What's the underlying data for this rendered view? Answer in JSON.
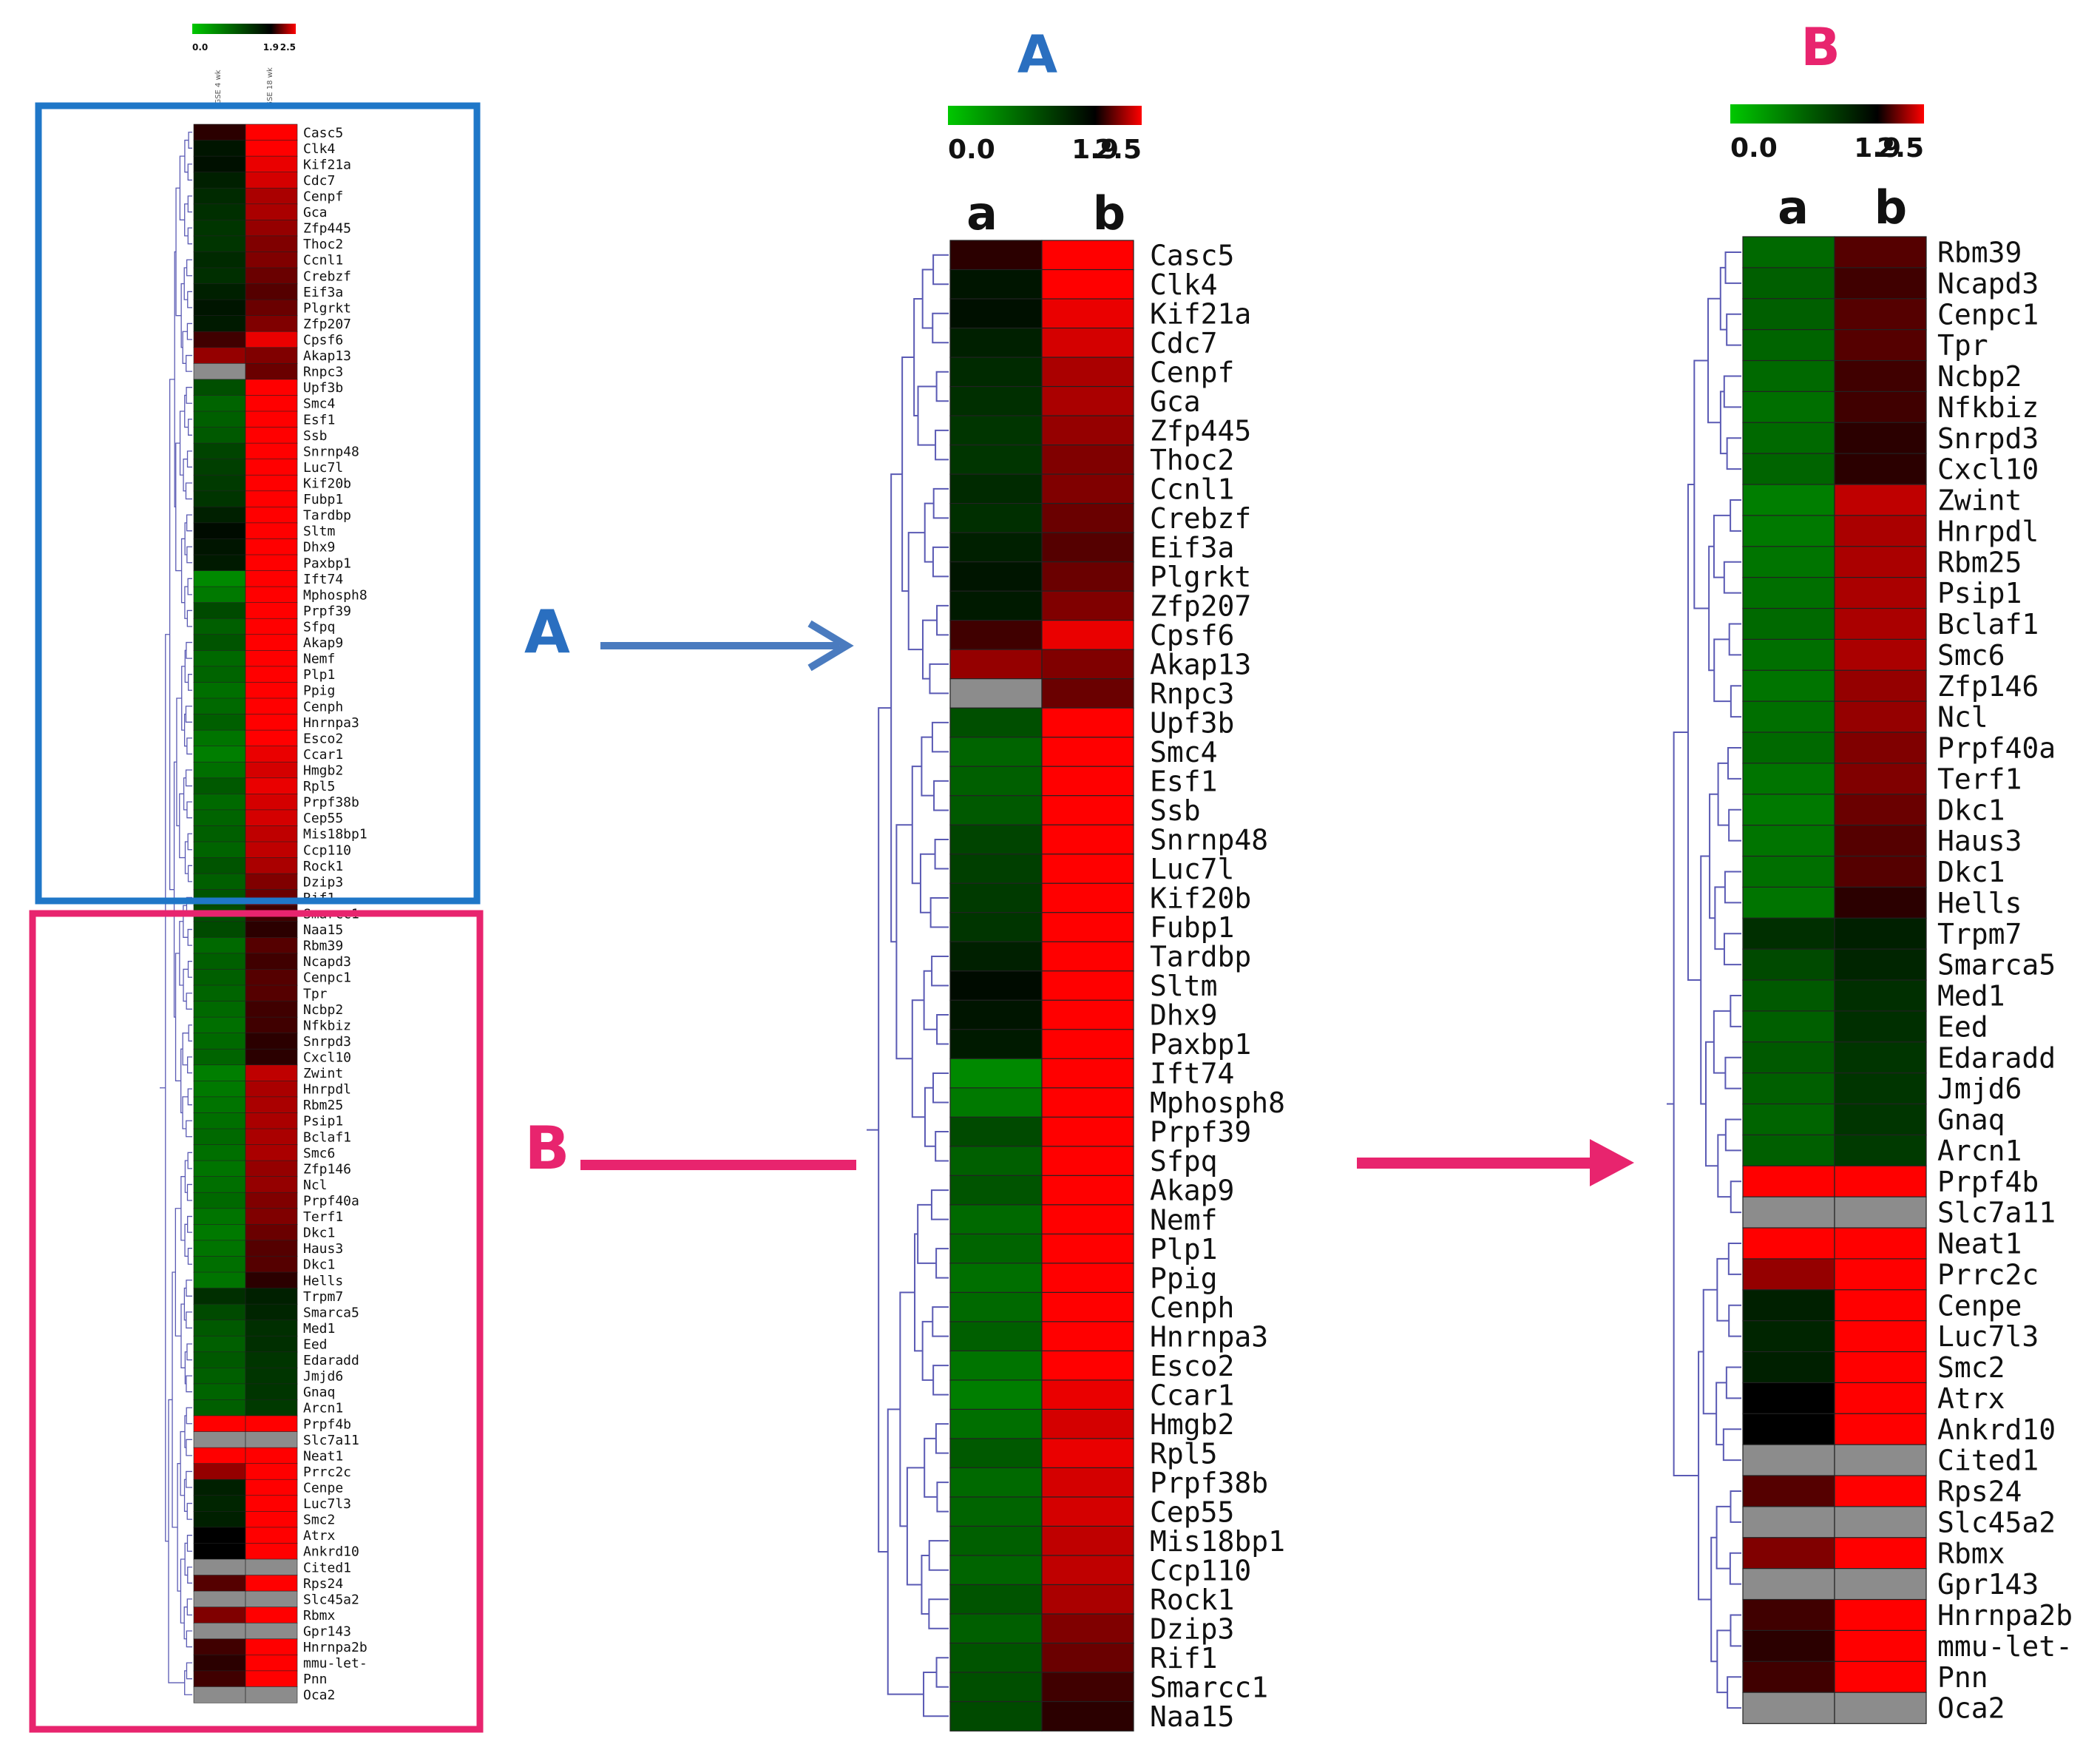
{
  "panel_labels": {
    "a": "A",
    "b": "B"
  },
  "arrow_labels": {
    "a": "A",
    "b": "B"
  },
  "scale": {
    "tick_labels": [
      "0.0",
      "1.9",
      "2.5"
    ],
    "min": 0.0,
    "mid": 1.9,
    "max": 2.5
  },
  "overview": {
    "column_labels": [
      "GSE 4 wk",
      "GSE 18 wk"
    ]
  },
  "column_labels": {
    "a": "a",
    "b": "b"
  },
  "colors": {
    "low": "#00c800",
    "mid": "#000000",
    "high": "#ff0000",
    "missing": "#8c8c8c",
    "dendrogram": "#5a5ab4",
    "box_a": "#1f77c8",
    "box_b": "#e8246e",
    "arrow_a": "#4a7bbf",
    "arrow_b": "#e8246e"
  },
  "chart_data": [
    {
      "type": "heatmap",
      "title": "A",
      "columns": [
        "a",
        "b"
      ],
      "scale": [
        0.0,
        1.9,
        2.5
      ],
      "genes": [
        "Casc5",
        "Clk4",
        "Kif21a",
        "Cdc7",
        "Cenpf",
        "Gca",
        "Zfp445",
        "Thoc2",
        "Ccnl1",
        "Crebzf",
        "Eif3a",
        "Plgrkt",
        "Zfp207",
        "Cpsf6",
        "Akap13",
        "Rnpc3",
        "Upf3b",
        "Smc4",
        "Esf1",
        "Ssb",
        "Snrnp48",
        "Luc7l",
        "Kif20b",
        "Fubp1",
        "Tardbp",
        "Sltm",
        "Dhx9",
        "Paxbp1",
        "Ift74",
        "Mphosph8",
        "Prpf39",
        "Sfpq",
        "Akap9",
        "Nemf",
        "Plp1",
        "Ppig",
        "Cenph",
        "Hnrnpa3",
        "Esco2",
        "Ccar1",
        "Hmgb2",
        "Rpl5",
        "Prpf38b",
        "Cep55",
        "Mis18bp1",
        "Ccp110",
        "Rock1",
        "Dzip3",
        "Rif1",
        "Smarcc1",
        "Naa15"
      ],
      "values_a": [
        2.0,
        1.7,
        1.75,
        1.6,
        1.5,
        1.45,
        1.4,
        1.4,
        1.5,
        1.45,
        1.6,
        1.7,
        1.65,
        2.05,
        2.25,
        null,
        1.15,
        0.95,
        1.0,
        1.05,
        1.25,
        1.3,
        1.35,
        1.4,
        1.6,
        1.8,
        1.7,
        1.65,
        0.6,
        0.75,
        1.2,
        1.0,
        1.1,
        0.9,
        0.95,
        0.85,
        0.9,
        1.0,
        0.8,
        0.7,
        0.85,
        1.05,
        0.9,
        0.95,
        1.0,
        0.95,
        1.1,
        1.0,
        1.1,
        1.15,
        1.2
      ],
      "values_b": [
        2.5,
        2.5,
        2.45,
        2.4,
        2.3,
        2.3,
        2.25,
        2.2,
        2.2,
        2.15,
        2.1,
        2.15,
        2.2,
        2.45,
        2.2,
        2.15,
        2.5,
        2.5,
        2.5,
        2.5,
        2.5,
        2.5,
        2.5,
        2.5,
        2.5,
        2.5,
        2.5,
        2.5,
        2.5,
        2.5,
        2.5,
        2.5,
        2.5,
        2.5,
        2.5,
        2.5,
        2.5,
        2.5,
        2.5,
        2.45,
        2.4,
        2.45,
        2.4,
        2.4,
        2.35,
        2.35,
        2.3,
        2.2,
        2.15,
        2.05,
        2.0
      ]
    },
    {
      "type": "heatmap",
      "title": "B",
      "columns": [
        "a",
        "b"
      ],
      "scale": [
        0.0,
        1.9,
        2.5
      ],
      "genes": [
        "Rbm39",
        "Ncapd3",
        "Cenpc1",
        "Tpr",
        "Ncbp2",
        "Nfkbiz",
        "Snrpd3",
        "Cxcl10",
        "Zwint",
        "Hnrpdl",
        "Rbm25",
        "Psip1",
        "Bclaf1",
        "Smc6",
        "Zfp146",
        "Ncl",
        "Prpf40a",
        "Terf1",
        "Dkc1",
        "Haus3",
        "Dkc1",
        "Hells",
        "Trpm7",
        "Smarca5",
        "Med1",
        "Eed",
        "Edaradd",
        "Jmjd6",
        "Gnaq",
        "Arcn1",
        "Prpf4b",
        "Slc7a11",
        "Neat1",
        "Prrc2c",
        "Cenpe",
        "Luc7l3",
        "Smc2",
        "Atrx",
        "Ankrd10",
        "Cited1",
        "Rps24",
        "Slc45a2",
        "Rbmx",
        "Gpr143",
        "Hnrnpa2b",
        "mmu-let-",
        "Pnn",
        "Oca2"
      ],
      "values_a": [
        0.9,
        1.0,
        1.0,
        0.95,
        0.9,
        0.85,
        0.9,
        0.95,
        0.7,
        0.75,
        0.8,
        0.85,
        0.9,
        0.85,
        0.8,
        0.85,
        0.9,
        0.8,
        0.75,
        0.8,
        0.85,
        0.8,
        1.45,
        1.2,
        1.05,
        1.0,
        1.05,
        1.0,
        0.95,
        1.0,
        2.5,
        null,
        2.5,
        2.25,
        1.6,
        1.55,
        1.6,
        1.9,
        1.9,
        null,
        2.1,
        null,
        2.2,
        null,
        2.05,
        2.0,
        2.05,
        null
      ],
      "values_b": [
        2.1,
        2.05,
        2.1,
        2.1,
        2.05,
        2.05,
        2.0,
        2.0,
        2.35,
        2.3,
        2.3,
        2.3,
        2.3,
        2.3,
        2.25,
        2.25,
        2.2,
        2.2,
        2.15,
        2.1,
        2.1,
        2.0,
        1.6,
        1.55,
        1.45,
        1.45,
        1.4,
        1.4,
        1.4,
        1.35,
        2.5,
        null,
        2.5,
        2.5,
        2.5,
        2.5,
        2.5,
        2.5,
        2.5,
        null,
        2.5,
        null,
        2.5,
        null,
        2.5,
        2.5,
        2.5,
        null
      ]
    }
  ]
}
